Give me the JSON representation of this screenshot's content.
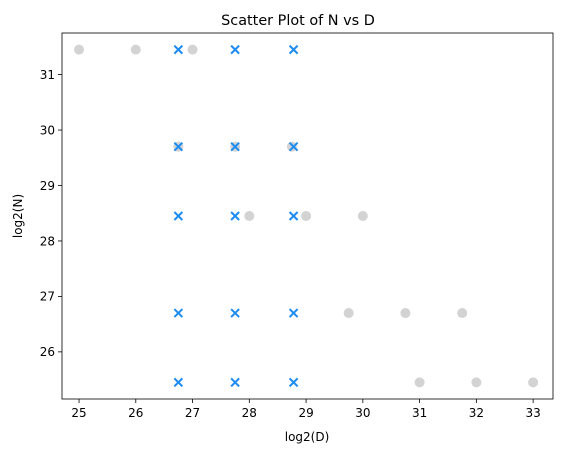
{
  "chart_data": {
    "type": "scatter",
    "title": "Scatter Plot of N vs D",
    "xlabel": "log2(D)",
    "ylabel": "log2(N)",
    "xlim": [
      24.7,
      33.35
    ],
    "ylim": [
      25.15,
      31.75
    ],
    "xticks": [
      25,
      26,
      27,
      28,
      29,
      30,
      31,
      32,
      33
    ],
    "yticks": [
      26,
      27,
      28,
      29,
      30,
      31
    ],
    "grid": false,
    "series": [
      {
        "marker": "circle",
        "color": "#d3d3d3",
        "points": [
          {
            "x": 25.0,
            "y": 31.45
          },
          {
            "x": 26.0,
            "y": 31.45
          },
          {
            "x": 27.0,
            "y": 31.45
          },
          {
            "x": 26.75,
            "y": 29.7
          },
          {
            "x": 27.75,
            "y": 29.7
          },
          {
            "x": 28.75,
            "y": 29.7
          },
          {
            "x": 28.0,
            "y": 28.45
          },
          {
            "x": 29.0,
            "y": 28.45
          },
          {
            "x": 30.0,
            "y": 28.45
          },
          {
            "x": 29.75,
            "y": 26.7
          },
          {
            "x": 30.75,
            "y": 26.7
          },
          {
            "x": 31.75,
            "y": 26.7
          },
          {
            "x": 31.0,
            "y": 25.45
          },
          {
            "x": 32.0,
            "y": 25.45
          },
          {
            "x": 33.0,
            "y": 25.45
          }
        ]
      },
      {
        "marker": "x",
        "color": "#1e8cf0",
        "points": [
          {
            "x": 26.75,
            "y": 31.45
          },
          {
            "x": 27.75,
            "y": 31.45
          },
          {
            "x": 28.78,
            "y": 31.45
          },
          {
            "x": 26.75,
            "y": 29.7
          },
          {
            "x": 27.75,
            "y": 29.7
          },
          {
            "x": 28.78,
            "y": 29.7
          },
          {
            "x": 26.75,
            "y": 28.45
          },
          {
            "x": 27.75,
            "y": 28.45
          },
          {
            "x": 28.78,
            "y": 28.45
          },
          {
            "x": 26.75,
            "y": 26.7
          },
          {
            "x": 27.75,
            "y": 26.7
          },
          {
            "x": 28.78,
            "y": 26.7
          },
          {
            "x": 26.75,
            "y": 25.45
          },
          {
            "x": 27.75,
            "y": 25.45
          },
          {
            "x": 28.78,
            "y": 25.45
          }
        ]
      }
    ]
  }
}
